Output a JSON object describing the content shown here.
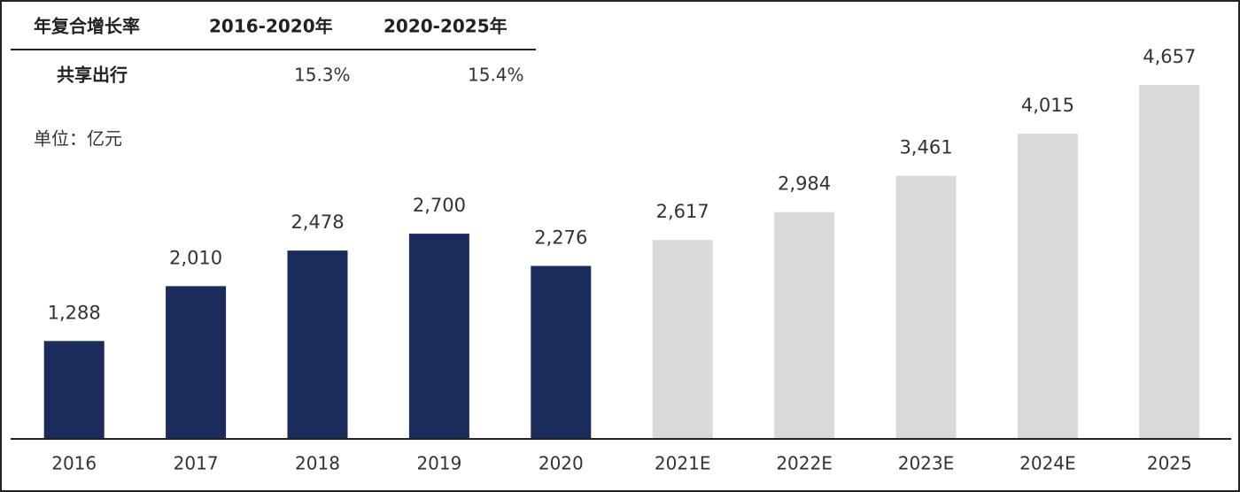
{
  "chart_data": {
    "type": "bar",
    "categories": [
      "2016",
      "2017",
      "2018",
      "2019",
      "2020",
      "2021E",
      "2022E",
      "2023E",
      "2024E",
      "2025"
    ],
    "values": [
      1288,
      2010,
      2478,
      2700,
      2276,
      2617,
      2984,
      3461,
      4015,
      4657
    ],
    "value_labels": [
      "1,288",
      "2,010",
      "2,478",
      "2,700",
      "2,276",
      "2,617",
      "2,984",
      "3,461",
      "4,015",
      "4,657"
    ],
    "colors": [
      "#1b2b5b",
      "#1b2b5b",
      "#1b2b5b",
      "#1b2b5b",
      "#1b2b5b",
      "#d9d9d9",
      "#d9d9d9",
      "#d9d9d9",
      "#d9d9d9",
      "#d9d9d9"
    ],
    "unit": "单位：亿元",
    "table": {
      "header": [
        "年复合增长率",
        "2016-2020年",
        "2020-2025年"
      ],
      "rows": [
        [
          "共享出行",
          "15.3%",
          "15.4%"
        ]
      ]
    }
  }
}
